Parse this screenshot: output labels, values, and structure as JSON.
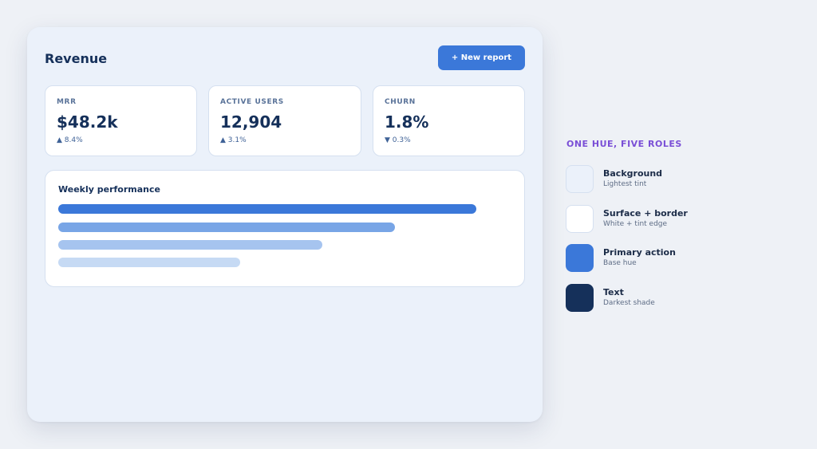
{
  "dashboard": {
    "title": "Revenue",
    "new_report_label": "+ New report",
    "metrics": [
      {
        "label": "MRR",
        "value": "$48.2k",
        "delta": "▲ 8.4%"
      },
      {
        "label": "ACTIVE USERS",
        "value": "12,904",
        "delta": "▲ 3.1%"
      },
      {
        "label": "CHURN",
        "value": "1.8%",
        "delta": "▼ 0.3%"
      }
    ],
    "performance": {
      "title": "Weekly performance",
      "bars": [
        {
          "fraction": 0.92,
          "color": "#3b78d9"
        },
        {
          "fraction": 0.74,
          "color": "#78a5e6"
        },
        {
          "fraction": 0.58,
          "color": "#a6c4ef"
        },
        {
          "fraction": 0.4,
          "color": "#c6daf4"
        }
      ]
    }
  },
  "legend": {
    "heading": "ONE HUE, FIVE ROLES",
    "roles": [
      {
        "title": "Background",
        "subtitle": "Lightest tint",
        "color": "#ebf1fa"
      },
      {
        "title": "Surface + border",
        "subtitle": "White + tint edge",
        "color": "#ffffff"
      },
      {
        "title": "Primary action",
        "subtitle": "Base hue",
        "color": "#3b78d9"
      },
      {
        "title": "Text",
        "subtitle": "Darkest shade",
        "color": "#15305a"
      }
    ]
  }
}
